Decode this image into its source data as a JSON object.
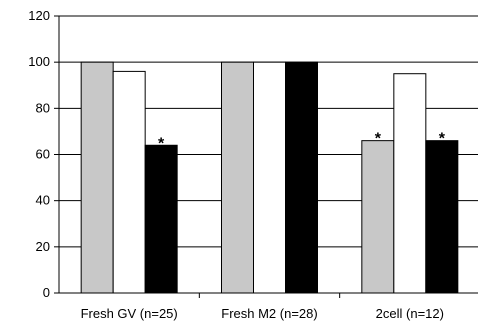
{
  "chart_data": {
    "type": "bar",
    "categories": [
      "Fresh GV (n=25)",
      "Fresh M2 (n=28)",
      "2cell (n=12)"
    ],
    "series": [
      {
        "values": [
          100,
          100,
          66
        ],
        "color": "#c8c8c8",
        "annotations": [
          "",
          "",
          "*"
        ]
      },
      {
        "values": [
          96,
          100,
          95
        ],
        "color": "#ffffff",
        "annotations": [
          "",
          "",
          ""
        ]
      },
      {
        "values": [
          64,
          100,
          66
        ],
        "color": "#000000",
        "annotations": [
          "*",
          "",
          "*"
        ]
      }
    ],
    "yticks": [
      0,
      20,
      40,
      60,
      80,
      100,
      120
    ],
    "ylim": [
      0,
      120
    ],
    "grid": true,
    "title": "",
    "xlabel": "",
    "ylabel": ""
  }
}
